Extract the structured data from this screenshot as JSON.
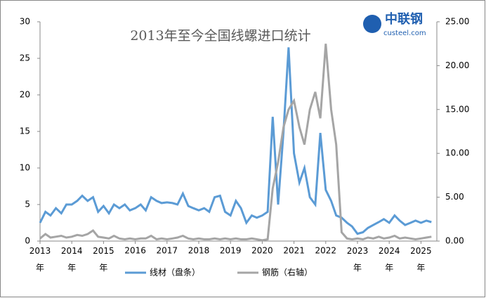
{
  "chart_data": {
    "type": "line",
    "title": "2013年至今全国线螺进口统计",
    "logo": {
      "name": "中联钢",
      "site": "custeel.com"
    },
    "x": [
      2013,
      2013.17,
      2013.33,
      2013.5,
      2013.67,
      2013.83,
      2014,
      2014.17,
      2014.33,
      2014.5,
      2014.67,
      2014.83,
      2015,
      2015.17,
      2015.33,
      2015.5,
      2015.67,
      2015.83,
      2016,
      2016.17,
      2016.33,
      2016.5,
      2016.67,
      2016.83,
      2017,
      2017.17,
      2017.33,
      2017.5,
      2017.67,
      2017.83,
      2018,
      2018.17,
      2018.33,
      2018.5,
      2018.67,
      2018.83,
      2019,
      2019.17,
      2019.33,
      2019.5,
      2019.67,
      2019.83,
      2020,
      2020.17,
      2020.33,
      2020.5,
      2020.67,
      2020.83,
      2021,
      2021.17,
      2021.33,
      2021.5,
      2021.67,
      2021.83,
      2022,
      2022.17,
      2022.33,
      2022.5,
      2022.67,
      2022.83,
      2023,
      2023.17,
      2023.33,
      2023.5,
      2023.67,
      2023.83,
      2024,
      2024.17,
      2024.33,
      2024.5,
      2024.67,
      2024.83,
      2025,
      2025.17,
      2025.33
    ],
    "series": [
      {
        "name": "线材（盘条）",
        "color": "#5b9bd5",
        "axis": "y",
        "values": [
          2.5,
          4,
          3.5,
          4.5,
          3.8,
          5,
          5,
          5.5,
          6.2,
          5.5,
          6,
          4,
          4.8,
          3.8,
          5,
          4.5,
          5,
          4.2,
          4.5,
          5,
          4.2,
          6,
          5.5,
          5.2,
          5.3,
          5.2,
          5,
          6.5,
          4.8,
          4.5,
          4.2,
          4.5,
          4,
          6,
          6.2,
          4,
          3.5,
          5.5,
          4.5,
          2.5,
          3.5,
          3.2,
          3.5,
          4,
          17,
          5,
          15,
          26.5,
          12,
          8,
          10,
          6,
          5,
          14.8,
          7,
          5.5,
          3.5,
          3.2,
          2.5,
          2,
          1,
          1.2,
          1.8,
          2.2,
          2.6,
          3,
          2.5,
          3.5,
          2.8,
          2.2,
          2.5,
          2.8,
          2.5,
          2.8,
          2.6
        ]
      },
      {
        "name": "钢筋（右轴）",
        "color": "#a5a5a5",
        "axis": "y2",
        "values": [
          0.3,
          0.8,
          0.4,
          0.5,
          0.6,
          0.4,
          0.5,
          0.7,
          0.6,
          0.8,
          1.2,
          0.5,
          0.4,
          0.3,
          0.6,
          0.3,
          0.2,
          0.3,
          0.2,
          0.3,
          0.3,
          0.6,
          0.2,
          0.3,
          0.2,
          0.3,
          0.4,
          0.6,
          0.3,
          0.2,
          0.3,
          0.2,
          0.2,
          0.3,
          0.2,
          0.3,
          0.2,
          0.3,
          0.2,
          0.2,
          0.3,
          0.2,
          0.1,
          0.2,
          6,
          9,
          13,
          15,
          16,
          13,
          11,
          15,
          17,
          14,
          22.5,
          15,
          11,
          1,
          0.3,
          0.2,
          0.3,
          0.2,
          0.4,
          0.3,
          0.5,
          0.3,
          0.4,
          0.6,
          0.3,
          0.4,
          0.3,
          0.2,
          0.3,
          0.4,
          0.5
        ]
      }
    ],
    "xlim": [
      2013,
      2025.5
    ],
    "xticks": [
      {
        "value": 2013,
        "label": "2013\n年"
      },
      {
        "value": 2014,
        "label": "2014\n年"
      },
      {
        "value": 2015,
        "label": "2015\n年"
      },
      2016,
      2017,
      2018,
      2019,
      2020,
      2021,
      2022,
      {
        "value": 2023,
        "label": "2023\n年"
      },
      {
        "value": 2024,
        "label": "2024\n年"
      },
      {
        "value": 2025,
        "label": "2025\n年"
      }
    ],
    "ylim": [
      0,
      30
    ],
    "yticks": [
      0,
      5,
      10,
      15,
      20,
      25,
      30
    ],
    "y2lim": [
      0,
      25
    ],
    "y2ticks": [
      {
        "value": 0,
        "label": "0.00"
      },
      {
        "value": 5,
        "label": "5.00"
      },
      {
        "value": 10,
        "label": "10.00"
      },
      {
        "value": 15,
        "label": "15.00"
      },
      {
        "value": 20,
        "label": "20.00"
      },
      {
        "value": 25,
        "label": "25.00"
      }
    ],
    "grid": false
  }
}
